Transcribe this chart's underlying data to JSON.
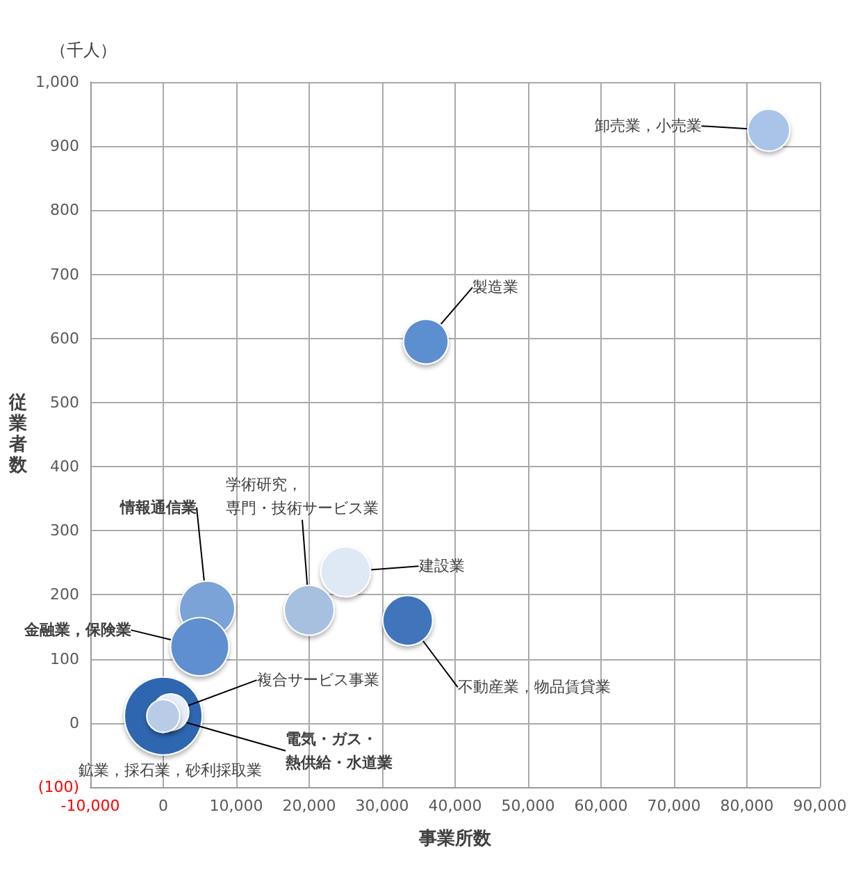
{
  "chart_data": {
    "type": "bubble",
    "xlabel": "事業所数",
    "ylabel": "従業者数",
    "annotations": [
      "（千人）"
    ],
    "xlim": [
      -10000,
      90000
    ],
    "xticks": [
      {
        "value": -10000,
        "label": "-10,000"
      },
      0,
      {
        "value": 10000,
        "label": "10,000"
      },
      {
        "value": 20000,
        "label": "20,000"
      },
      {
        "value": 30000,
        "label": "30,000"
      },
      {
        "value": 40000,
        "label": "40,000"
      },
      {
        "value": 50000,
        "label": "50,000"
      },
      {
        "value": 60000,
        "label": "60,000"
      },
      {
        "value": 70000,
        "label": "70,000"
      },
      {
        "value": 80000,
        "label": "80,000"
      },
      {
        "value": 90000,
        "label": "90,000"
      }
    ],
    "ylim": [
      -100,
      1000
    ],
    "yticks": [
      {
        "value": -100,
        "label": "(100)"
      },
      0,
      100,
      200,
      300,
      400,
      500,
      600,
      700,
      800,
      900,
      {
        "value": 1000,
        "label": "1,000"
      }
    ],
    "grid": true,
    "legend": false,
    "series": [
      {
        "name": "鉱業，採石業，砂利採取業",
        "color": "#2f66b0",
        "x": [
          0
        ],
        "values": [
          11
        ],
        "sizes": [
          1
        ]
      },
      {
        "name": "卸売業，小売業",
        "color": "#a9c4e8",
        "x": [
          83000
        ],
        "values": [
          925
        ],
        "sizes": [
          0.29
        ]
      },
      {
        "name": "製造業",
        "color": "#5b8fd0",
        "x": [
          36000
        ],
        "values": [
          595
        ],
        "sizes": [
          0.33
        ]
      },
      {
        "name": "建設業",
        "color": "#dfe8f5",
        "x": [
          25000
        ],
        "values": [
          236
        ],
        "sizes": [
          0.41
        ]
      },
      {
        "name": "学術研究，専門・技術サービス業",
        "color": "#a7c0e0",
        "x": [
          20000
        ],
        "values": [
          176
        ],
        "sizes": [
          0.41
        ]
      },
      {
        "name": "不動産業，物品賃貸業",
        "color": "#3f74bb",
        "x": [
          33500
        ],
        "values": [
          160
        ],
        "sizes": [
          0.41
        ]
      },
      {
        "name": "情報通信業",
        "color": "#7ba3d8",
        "x": [
          6000
        ],
        "values": [
          178
        ],
        "sizes": [
          0.51
        ]
      },
      {
        "name": "金融業，保険業",
        "color": "#5f8fcf",
        "x": [
          5000
        ],
        "values": [
          119
        ],
        "sizes": [
          0.56
        ]
      },
      {
        "name": "複合サービス事業",
        "color": "#e8eef8",
        "x": [
          1000
        ],
        "values": [
          17
        ],
        "sizes": [
          0.22
        ]
      },
      {
        "name": "電気・ガス・熱供給・水道業",
        "color": "#b8cce8",
        "x": [
          0
        ],
        "values": [
          11
        ],
        "sizes": [
          0.18
        ]
      }
    ]
  }
}
